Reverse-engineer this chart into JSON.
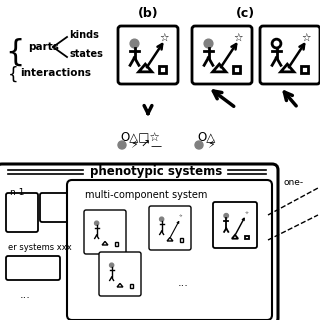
{
  "bg_color": "#ffffff",
  "text_color": "#000000",
  "gray_color": "#808080",
  "figsize": [
    3.2,
    3.2
  ],
  "dpi": 100,
  "title_b": "(b)",
  "title_c": "(c)",
  "label_parts": "parts",
  "label_kinds": "kinds",
  "label_states": "states",
  "label_interactions": "interactions",
  "label_phenotypic": "phenotypic systems",
  "label_multicomp": "multi-component system",
  "label_one": "one-",
  "label_xxx": "er systems xxx",
  "label_n1": "n 1",
  "label_dots": "..."
}
